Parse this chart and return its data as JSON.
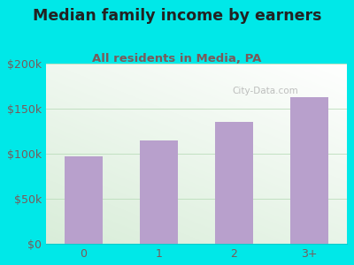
{
  "categories": [
    "0",
    "1",
    "2",
    "3+"
  ],
  "values": [
    97000,
    115000,
    135000,
    163000
  ],
  "bar_color": "#b8a0cc",
  "title": "Median family income by earners",
  "subtitle": "All residents in Media, PA",
  "title_fontsize": 12.5,
  "subtitle_fontsize": 9.5,
  "title_color": "#222222",
  "subtitle_color": "#7a5a5a",
  "tick_color": "#7a5a5a",
  "background_outer": "#00e8e8",
  "background_inner_top_left": "#d0ecd0",
  "background_inner_bottom_right": "#eaf5ea",
  "ylim": [
    0,
    200000
  ],
  "yticks": [
    0,
    50000,
    100000,
    150000,
    200000
  ],
  "ytick_labels": [
    "$0",
    "$50k",
    "$100k",
    "$150k",
    "$200k"
  ],
  "watermark": "City-Data.com"
}
